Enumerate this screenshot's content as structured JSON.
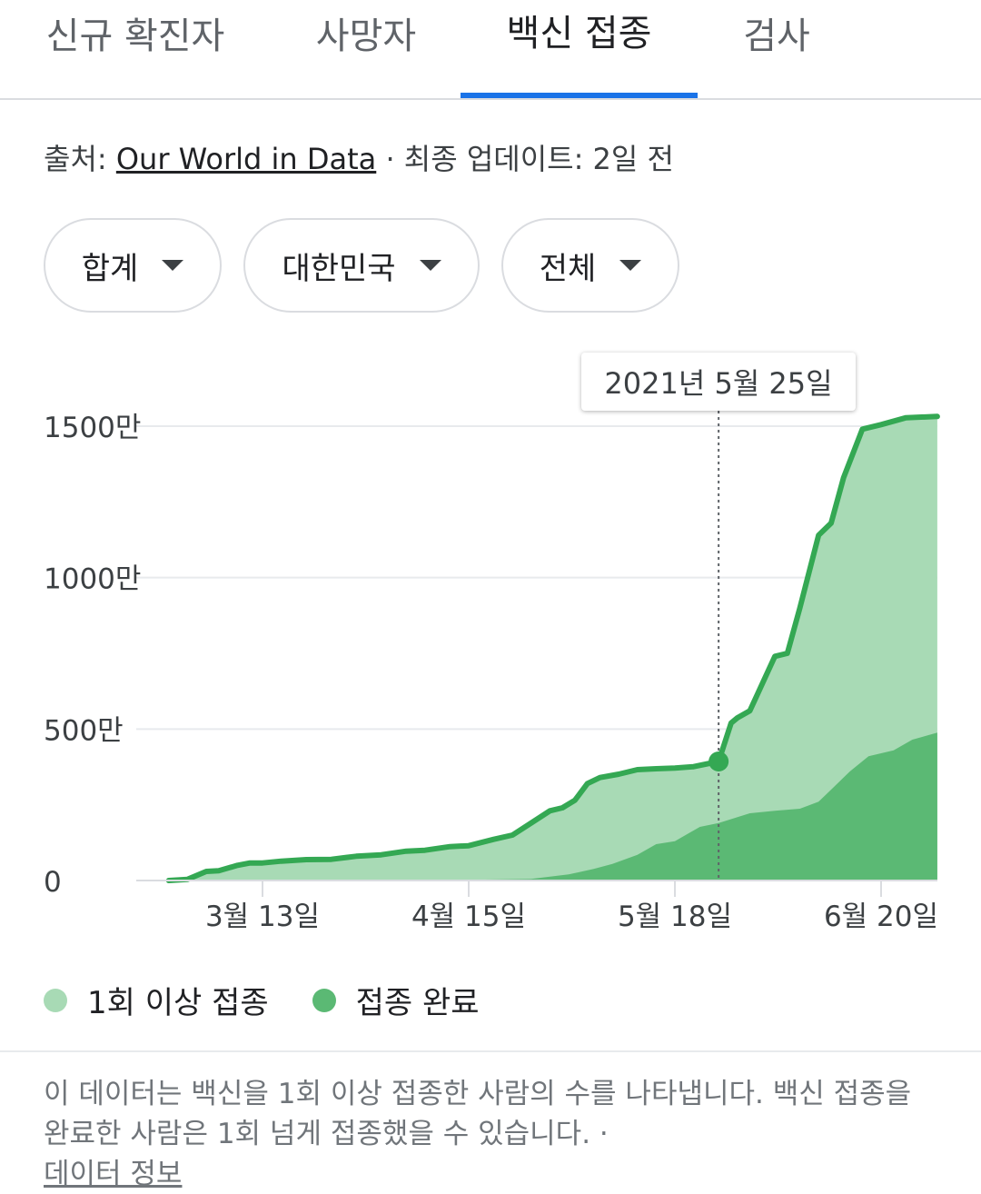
{
  "tabs": [
    {
      "label": "신규 확진자"
    },
    {
      "label": "사망자"
    },
    {
      "label": "백신 접종",
      "active": true
    },
    {
      "label": "검사"
    }
  ],
  "source": {
    "prefix": "출처: ",
    "link": "Our World in Data",
    "suffix": " · 최종 업데이트: 2일 전"
  },
  "filters": [
    {
      "label": "합계"
    },
    {
      "label": "대한민국"
    },
    {
      "label": "전체"
    }
  ],
  "tooltip": {
    "date": "2021년 5월 25일"
  },
  "legend": [
    {
      "label": "1회 이상 접종",
      "color": "#a8dab5"
    },
    {
      "label": "접종 완료",
      "color": "#5bb974"
    }
  ],
  "note": {
    "text": "이 데이터는 백신을 1회 이상 접종한 사람의 수를 나타냅니다. 백신 접종을 완료한 사람은 1회 넘게 접종했을 수 있습니다. ·",
    "link": "데이터 정보"
  },
  "chart_data": {
    "type": "area",
    "y_unit": "만",
    "ylim": [
      0,
      1500
    ],
    "yticks": [
      {
        "value": 0,
        "label": "0"
      },
      {
        "value": 500,
        "label": "500만"
      },
      {
        "value": 1000,
        "label": "1000만"
      },
      {
        "value": 1500,
        "label": "1500만"
      }
    ],
    "xticks": [
      {
        "date": "2021-03-13",
        "label": "3월 13일"
      },
      {
        "date": "2021-04-15",
        "label": "4월 15일"
      },
      {
        "date": "2021-05-18",
        "label": "5월 18일"
      },
      {
        "date": "2021-06-20",
        "label": "6월 20일"
      }
    ],
    "highlight": {
      "date": "2021-05-25",
      "value": 393
    },
    "series": [
      {
        "name": "1회 이상 접종",
        "color": "#a8dab5",
        "line_color": "#34a853",
        "points": [
          [
            "2021-02-26",
            0
          ],
          [
            "2021-03-01",
            4
          ],
          [
            "2021-03-04",
            30
          ],
          [
            "2021-03-06",
            32
          ],
          [
            "2021-03-09",
            50
          ],
          [
            "2021-03-11",
            58
          ],
          [
            "2021-03-13",
            58
          ],
          [
            "2021-03-16",
            64
          ],
          [
            "2021-03-20",
            69
          ],
          [
            "2021-03-24",
            70
          ],
          [
            "2021-03-28",
            80
          ],
          [
            "2021-04-01",
            85
          ],
          [
            "2021-04-05",
            97
          ],
          [
            "2021-04-08",
            100
          ],
          [
            "2021-04-12",
            112
          ],
          [
            "2021-04-15",
            115
          ],
          [
            "2021-04-19",
            136
          ],
          [
            "2021-04-22",
            150
          ],
          [
            "2021-04-25",
            190
          ],
          [
            "2021-04-28",
            230
          ],
          [
            "2021-04-30",
            240
          ],
          [
            "2021-05-02",
            265
          ],
          [
            "2021-05-04",
            320
          ],
          [
            "2021-05-06",
            340
          ],
          [
            "2021-05-09",
            351
          ],
          [
            "2021-05-12",
            366
          ],
          [
            "2021-05-15",
            369
          ],
          [
            "2021-05-18",
            371
          ],
          [
            "2021-05-21",
            376
          ],
          [
            "2021-05-25",
            393
          ],
          [
            "2021-05-27",
            520
          ],
          [
            "2021-05-28",
            537
          ],
          [
            "2021-05-30",
            560
          ],
          [
            "2021-06-01",
            650
          ],
          [
            "2021-06-03",
            740
          ],
          [
            "2021-06-05",
            750
          ],
          [
            "2021-06-07",
            900
          ],
          [
            "2021-06-10",
            1140
          ],
          [
            "2021-06-12",
            1180
          ],
          [
            "2021-06-14",
            1330
          ],
          [
            "2021-06-17",
            1490
          ],
          [
            "2021-06-20",
            1505
          ],
          [
            "2021-06-24",
            1528
          ],
          [
            "2021-06-29",
            1532
          ]
        ]
      },
      {
        "name": "접종 완료",
        "color": "#5bb974",
        "points": [
          [
            "2021-02-26",
            0
          ],
          [
            "2021-04-05",
            0
          ],
          [
            "2021-04-15",
            2
          ],
          [
            "2021-04-25",
            5
          ],
          [
            "2021-05-01",
            20
          ],
          [
            "2021-05-05",
            38
          ],
          [
            "2021-05-08",
            55
          ],
          [
            "2021-05-12",
            85
          ],
          [
            "2021-05-15",
            120
          ],
          [
            "2021-05-18",
            130
          ],
          [
            "2021-05-22",
            177
          ],
          [
            "2021-05-25",
            190
          ],
          [
            "2021-05-30",
            222
          ],
          [
            "2021-06-03",
            230
          ],
          [
            "2021-06-07",
            237
          ],
          [
            "2021-06-10",
            260
          ],
          [
            "2021-06-12",
            300
          ],
          [
            "2021-06-15",
            360
          ],
          [
            "2021-06-18",
            410
          ],
          [
            "2021-06-22",
            430
          ],
          [
            "2021-06-25",
            465
          ],
          [
            "2021-06-29",
            488
          ]
        ]
      }
    ]
  }
}
